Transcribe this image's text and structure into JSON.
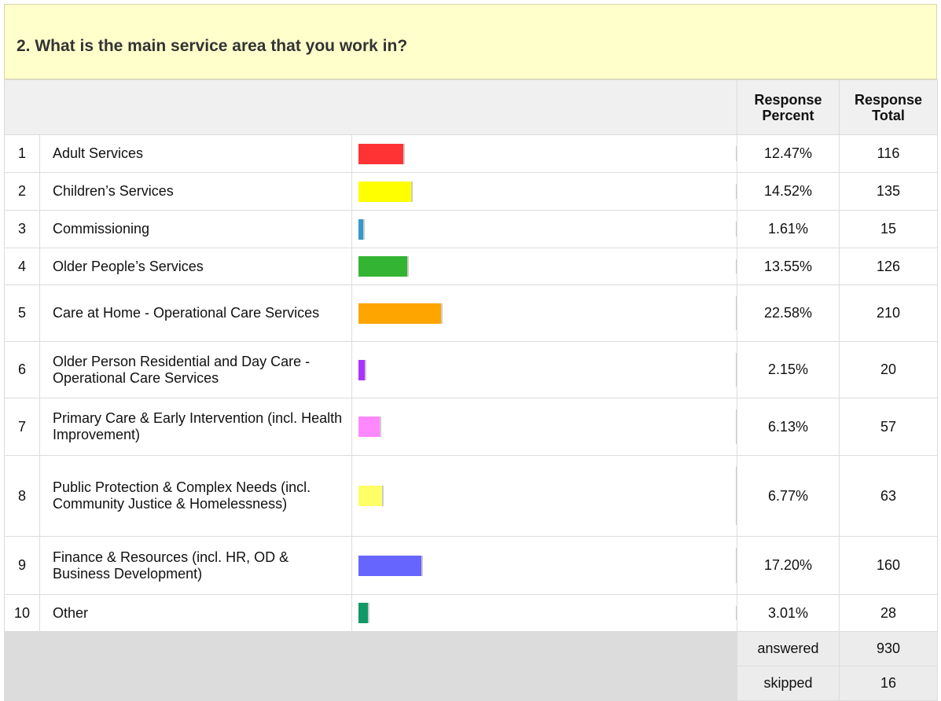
{
  "header": {
    "title": "2. What is the main service area that you work in?"
  },
  "table": {
    "columns": {
      "percent": "Response Percent",
      "total": "Response Total"
    },
    "rows": [
      {
        "number": 1,
        "label": "Adult Services",
        "percent": 12.47,
        "percent_label": "12.47%",
        "total": 116,
        "color": "#ff3333"
      },
      {
        "number": 2,
        "label": "Children’s Services",
        "percent": 14.52,
        "percent_label": "14.52%",
        "total": 135,
        "color": "#ffff00"
      },
      {
        "number": 3,
        "label": "Commissioning",
        "percent": 1.61,
        "percent_label": "1.61%",
        "total": 15,
        "color": "#3399cc"
      },
      {
        "number": 4,
        "label": "Older People’s Services",
        "percent": 13.55,
        "percent_label": "13.55%",
        "total": 126,
        "color": "#33b533"
      },
      {
        "number": 5,
        "label": "Care at Home - Operational Care Services",
        "percent": 22.58,
        "percent_label": "22.58%",
        "total": 210,
        "color": "#ffa500"
      },
      {
        "number": 6,
        "label": "Older Person Residential and Day Care - Operational Care Services",
        "percent": 2.15,
        "percent_label": "2.15%",
        "total": 20,
        "color": "#aa33ff"
      },
      {
        "number": 7,
        "label": "Primary Care & Early Intervention (incl. Health Improvement)",
        "percent": 6.13,
        "percent_label": "6.13%",
        "total": 57,
        "color": "#ff88ff"
      },
      {
        "number": 8,
        "label": "Public Protection & Complex Needs (incl. Community Justice & Homelessness)",
        "percent": 6.77,
        "percent_label": "6.77%",
        "total": 63,
        "color": "#ffff66"
      },
      {
        "number": 9,
        "label": "Finance & Resources (incl. HR, OD & Business Development)",
        "percent": 17.2,
        "percent_label": "17.20%",
        "total": 160,
        "color": "#6666ff"
      },
      {
        "number": 10,
        "label": "Other",
        "percent": 3.01,
        "percent_label": "3.01%",
        "total": 28,
        "color": "#119966"
      }
    ],
    "footer": [
      {
        "label": "answered",
        "value": 930
      },
      {
        "label": "skipped",
        "value": 16
      }
    ]
  }
}
